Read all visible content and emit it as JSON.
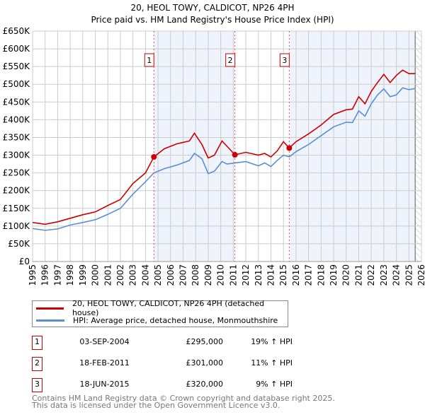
{
  "chart_data": {
    "type": "line",
    "title": "20, HEOL TOWY, CALDICOT, NP26 4PH",
    "subtitle": "Price paid vs. HM Land Registry's House Price Index (HPI)",
    "xlim": [
      1995,
      2026
    ],
    "ylim": [
      0,
      650000
    ],
    "yticks": [
      "£0",
      "£50K",
      "£100K",
      "£150K",
      "£200K",
      "£250K",
      "£300K",
      "£350K",
      "£400K",
      "£450K",
      "£500K",
      "£550K",
      "£600K",
      "£650K"
    ],
    "xticks": [
      "1995",
      "1996",
      "1997",
      "1998",
      "1999",
      "2000",
      "2001",
      "2002",
      "2003",
      "2004",
      "2005",
      "2006",
      "2007",
      "2008",
      "2009",
      "2010",
      "2011",
      "2012",
      "2013",
      "2014",
      "2015",
      "2016",
      "2017",
      "2018",
      "2019",
      "2020",
      "2021",
      "2022",
      "2023",
      "2024",
      "2025",
      "2026"
    ],
    "grid": true,
    "series": [
      {
        "name": "20, HEOL TOWY, CALDICOT, NP26 4PH (detached house)",
        "color": "#cc0000",
        "x": [
          1995,
          1996,
          1997,
          1998,
          1999,
          2000,
          2001,
          2002,
          2003,
          2004,
          2004.67,
          2005.5,
          2006.5,
          2007.5,
          2007.9,
          2008.5,
          2009.0,
          2009.5,
          2010.1,
          2010.5,
          2011.13,
          2012,
          2013,
          2013.5,
          2014,
          2014.5,
          2015.0,
          2015.46,
          2016,
          2017,
          2018,
          2019,
          2020,
          2020.5,
          2021,
          2021.5,
          2022,
          2022.5,
          2023,
          2023.5,
          2024,
          2024.5,
          2025,
          2025.5
        ],
        "y": [
          110000,
          105000,
          112000,
          122000,
          132000,
          140000,
          158000,
          175000,
          220000,
          250000,
          295000,
          318000,
          332000,
          340000,
          362000,
          330000,
          292000,
          300000,
          340000,
          325000,
          301000,
          308000,
          300000,
          305000,
          295000,
          312000,
          338000,
          320000,
          338000,
          360000,
          385000,
          415000,
          428000,
          430000,
          465000,
          445000,
          480000,
          505000,
          528000,
          505000,
          525000,
          540000,
          530000,
          530000
        ]
      },
      {
        "name": "HPI: Average price, detached house, Monmouthshire",
        "color": "#5b8fd4",
        "x": [
          1995,
          1996,
          1997,
          1998,
          1999,
          2000,
          2001,
          2002,
          2003,
          2004,
          2004.67,
          2005.5,
          2006.5,
          2007.5,
          2007.9,
          2008.5,
          2009.0,
          2009.5,
          2010.1,
          2010.5,
          2011.13,
          2012,
          2013,
          2013.5,
          2014,
          2014.5,
          2015.0,
          2015.46,
          2016,
          2017,
          2018,
          2019,
          2020,
          2020.5,
          2021,
          2021.5,
          2022,
          2022.5,
          2023,
          2023.5,
          2024,
          2024.5,
          2025,
          2025.5
        ],
        "y": [
          93000,
          88000,
          92000,
          103000,
          110000,
          118000,
          133000,
          150000,
          190000,
          225000,
          250000,
          262000,
          272000,
          285000,
          305000,
          290000,
          248000,
          255000,
          282000,
          275000,
          278000,
          282000,
          270000,
          278000,
          268000,
          285000,
          300000,
          295000,
          310000,
          330000,
          355000,
          380000,
          393000,
          392000,
          425000,
          410000,
          445000,
          470000,
          487000,
          465000,
          470000,
          490000,
          485000,
          488000
        ]
      }
    ],
    "sales": [
      {
        "label": "1",
        "x": 2004.67,
        "y": 295000,
        "date": "03-SEP-2004",
        "price": "£295,000",
        "hpi": "19% ↑ HPI"
      },
      {
        "label": "2",
        "x": 2011.13,
        "y": 301000,
        "date": "18-FEB-2011",
        "price": "£301,000",
        "hpi": "11% ↑ HPI"
      },
      {
        "label": "3",
        "x": 2015.46,
        "y": 320000,
        "date": "18-JUN-2015",
        "price": "£320,000",
        "hpi": "9% ↑ HPI"
      }
    ],
    "forecast_start": 2025.5
  },
  "footer": {
    "line1": "Contains HM Land Registry data © Crown copyright and database right 2025.",
    "line2": "This data is licensed under the Open Government Licence v3.0."
  }
}
